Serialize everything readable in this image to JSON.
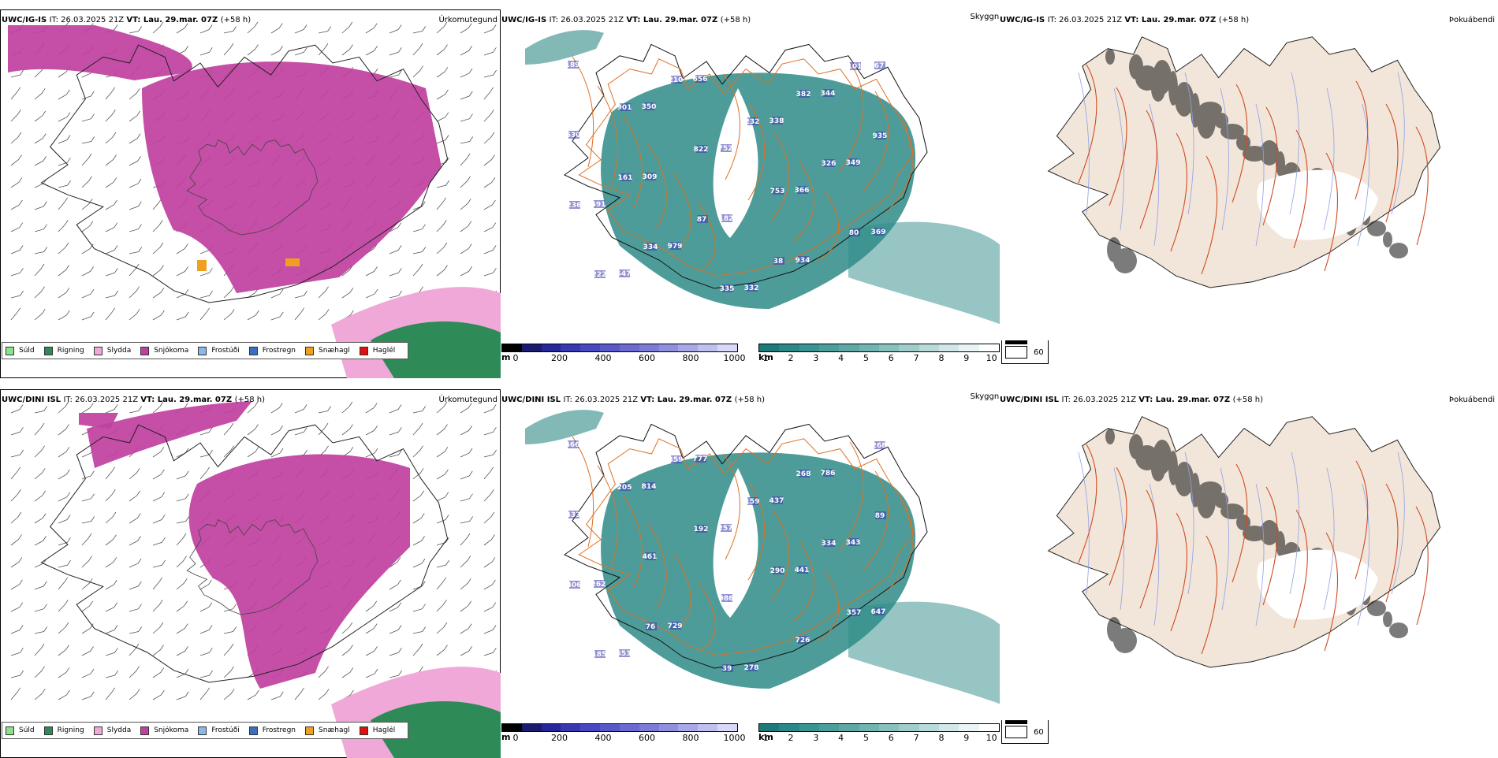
{
  "rows": [
    {
      "model": "UWC/IG-IS",
      "it_label": "IT:",
      "it_value": "26.03.2025 21Z",
      "vt_label": "VT:",
      "vt_value": "Lau. 29.mar. 07Z",
      "lead": "(+58 h)",
      "panels": {
        "precip": "Úrkomutegund",
        "visibility": "Skyggni",
        "cloud": "Þokuábendi"
      },
      "cloud_labels": [
        "189",
        "350",
        "752",
        "366",
        "369",
        "547",
        "656",
        "338",
        "349",
        "491",
        "979",
        "332",
        "344",
        "630",
        "309",
        "182",
        "934",
        "67",
        "901",
        "822",
        "753",
        "80",
        "222",
        "210",
        "232",
        "326",
        "236",
        "334",
        "335",
        "382",
        "935",
        "161",
        "87",
        "38",
        "101"
      ]
    },
    {
      "model": "UWC/DINI ISL",
      "it_label": "IT:",
      "it_value": "26.03.2025 21Z",
      "vt_label": "VT:",
      "vt_value": "Lau. 29.mar. 07Z",
      "lead": "(+58 h)",
      "panels": {
        "precip": "Úrkomutegund",
        "visibility": "Skyggni",
        "cloud": "Þokuábendi"
      },
      "cloud_labels": [
        "466",
        "814",
        "257",
        "441",
        "647",
        "553",
        "777",
        "437",
        "343",
        "262",
        "729",
        "278",
        "786",
        "433",
        "461",
        "986",
        "726",
        "268",
        "205",
        "192",
        "290",
        "357",
        "185",
        "359",
        "159",
        "334",
        "406",
        "76",
        "39",
        "268",
        "89"
      ]
    }
  ],
  "precip_legend": [
    {
      "label": "Súld",
      "color": "#8ee08e"
    },
    {
      "label": "Rigning",
      "color": "#2e8b57"
    },
    {
      "label": "Slydda",
      "color": "#f0a8d8"
    },
    {
      "label": "Snjókoma",
      "color": "#c040a0"
    },
    {
      "label": "Frostúði",
      "color": "#8ab8e8"
    },
    {
      "label": "Frostregn",
      "color": "#3a6fc0"
    },
    {
      "label": "Snæhagl",
      "color": "#f0a020"
    },
    {
      "label": "Haglél",
      "color": "#e01010"
    }
  ],
  "cloudbase_bar": {
    "unit": "m",
    "ticks": [
      "0",
      "200",
      "400",
      "600",
      "800",
      "1000"
    ],
    "colors": [
      "#000000",
      "#1a1a6e",
      "#27279a",
      "#3838b0",
      "#4848c0",
      "#5858c8",
      "#6a6ad0",
      "#7c7cd8",
      "#9090e0",
      "#a8a8e8",
      "#c0c0f0",
      "#d8d8f8"
    ]
  },
  "visibility_bar": {
    "unit": "km",
    "ticks": [
      "1",
      "2",
      "3",
      "4",
      "5",
      "6",
      "7",
      "8",
      "9",
      "10"
    ],
    "colors": [
      "#1e7a78",
      "#2a8886",
      "#3a9492",
      "#4c9e9c",
      "#5ea8a6",
      "#72b4b2",
      "#88c0be",
      "#a0ccca",
      "#b8dada",
      "#d2e8e8",
      "#eaf4f4",
      "#ffffff"
    ]
  },
  "sun_legend": [
    {
      "value": "0",
      "color": "#000000"
    },
    {
      "value": "60",
      "color": "#ffffff"
    }
  ],
  "colors": {
    "snow": "#c040a0",
    "rain": "#2e8b57",
    "sleet": "#f0a8d8",
    "ice_pellets": "#f0a020",
    "visibility": "#2e8b87",
    "low_cloud": "#3a3ab0",
    "roads": "#e07020",
    "land": "#f2e6da",
    "rivers": "#8fa0e8"
  }
}
